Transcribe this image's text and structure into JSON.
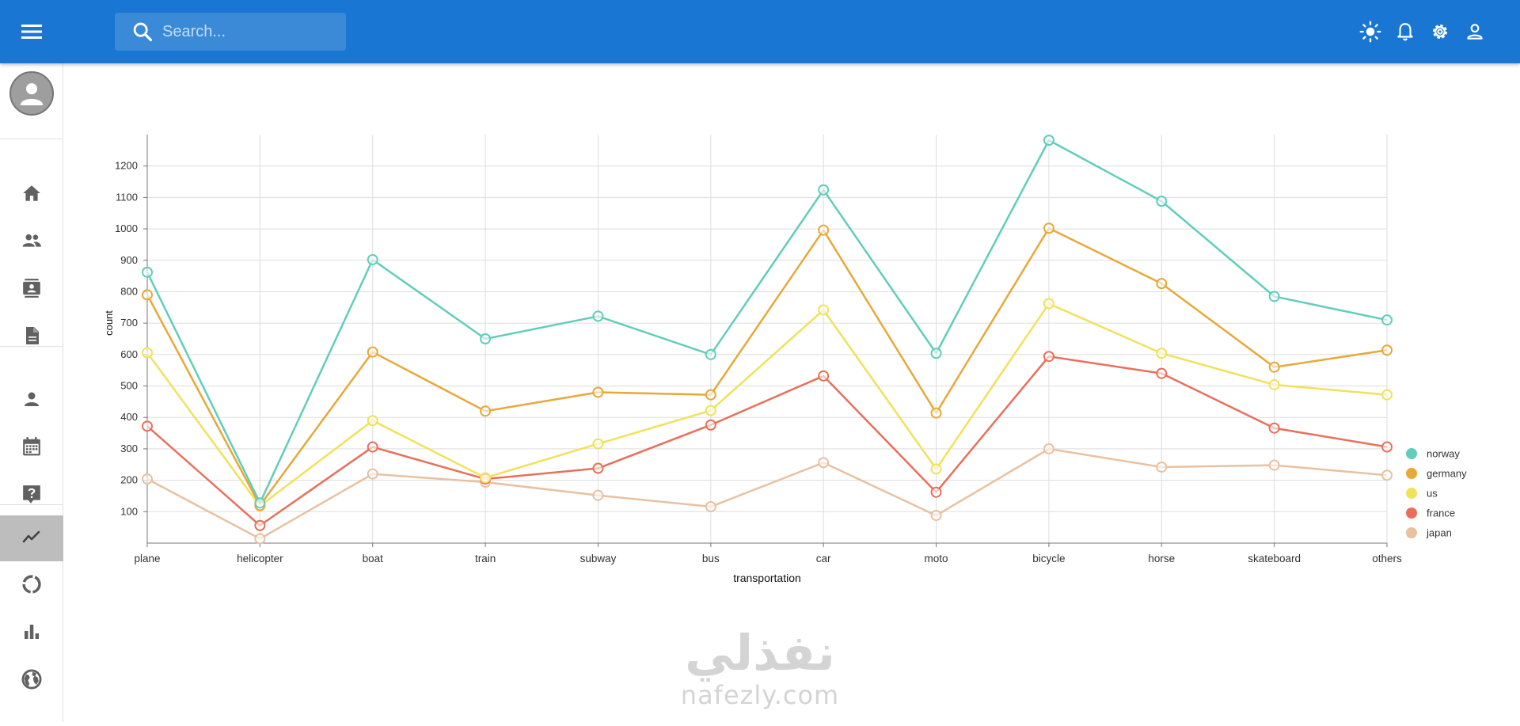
{
  "header": {
    "search_placeholder": "Search...",
    "icons": [
      "menu-icon",
      "search-icon",
      "brightness-icon",
      "bell-icon",
      "gear-icon",
      "account-icon"
    ]
  },
  "sidebar": {
    "items": [
      {
        "name": "home-icon"
      },
      {
        "name": "team-icon"
      },
      {
        "name": "contacts-icon"
      },
      {
        "name": "invoice-icon"
      },
      {
        "name": "profile-icon"
      },
      {
        "name": "calendar-icon"
      },
      {
        "name": "faq-icon"
      },
      {
        "name": "line-chart-icon",
        "active": true
      },
      {
        "name": "pie-chart-icon"
      },
      {
        "name": "bar-chart-icon"
      },
      {
        "name": "globe-icon"
      }
    ]
  },
  "colors": {
    "header": "#1976d2",
    "norway": "#61cdbb",
    "germany": "#e8a838",
    "us": "#f1e15b",
    "france": "#e8705b",
    "japan": "#e8c1a0"
  },
  "watermark": {
    "arabic": "نفذلي",
    "latin": "nafezly.com"
  },
  "chart_data": {
    "type": "line",
    "xlabel": "transportation",
    "ylabel": "count",
    "ylim": [
      0,
      1300
    ],
    "yticks": [
      100,
      200,
      300,
      400,
      500,
      600,
      700,
      800,
      900,
      1000,
      1100,
      1200
    ],
    "grid": true,
    "legend_position": "bottom-right",
    "categories": [
      "plane",
      "helicopter",
      "boat",
      "train",
      "subway",
      "bus",
      "car",
      "moto",
      "bicycle",
      "horse",
      "skateboard",
      "others"
    ],
    "series": [
      {
        "name": "norway",
        "color": "#61cdbb",
        "values": [
          862,
          128,
          902,
          650,
          722,
          600,
          1124,
          604,
          1282,
          1088,
          785,
          710
        ]
      },
      {
        "name": "germany",
        "color": "#e8a838",
        "values": [
          790,
          120,
          608,
          420,
          480,
          472,
          996,
          414,
          1002,
          826,
          560,
          614
        ]
      },
      {
        "name": "us",
        "color": "#f1e15b",
        "values": [
          606,
          118,
          390,
          208,
          316,
          422,
          742,
          236,
          762,
          604,
          504,
          472
        ]
      },
      {
        "name": "france",
        "color": "#e8705b",
        "values": [
          372,
          56,
          306,
          204,
          238,
          376,
          532,
          162,
          594,
          540,
          366,
          306
        ]
      },
      {
        "name": "japan",
        "color": "#e8c1a0",
        "values": [
          204,
          14,
          220,
          194,
          152,
          116,
          256,
          88,
          300,
          242,
          248,
          216
        ]
      }
    ]
  }
}
